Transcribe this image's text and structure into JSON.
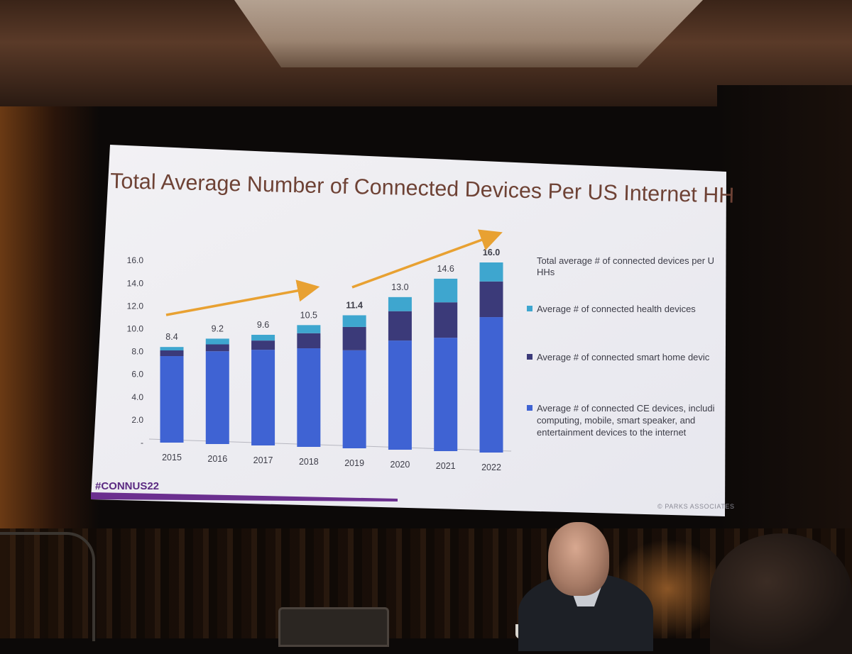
{
  "slide": {
    "title": "Total Average Number of Connected Devices Per US Internet HH",
    "hashtag": "#CONNUS22",
    "credit": "© PARKS ASSOCIATES"
  },
  "chart_data": {
    "type": "bar",
    "stacked": true,
    "title": "Total Average Number of Connected Devices Per US Internet HH",
    "categories": [
      "2015",
      "2016",
      "2017",
      "2018",
      "2019",
      "2020",
      "2021",
      "2022"
    ],
    "series": [
      {
        "name": "Average # of connected CE devices, including computing, mobile, smart speaker, and entertainment devices to the internet",
        "legend_lines": [
          "Average # of connected CE devices, includi",
          "computing, mobile, smart speaker, and",
          "entertainment devices to the internet"
        ],
        "color": "#3f63d3",
        "values": [
          7.6,
          8.1,
          8.3,
          8.5,
          8.4,
          9.3,
          9.6,
          11.4
        ]
      },
      {
        "name": "Average # of connected smart home devices",
        "legend_lines": [
          "Average # of connected smart home devic"
        ],
        "color": "#3b3a79",
        "values": [
          0.5,
          0.6,
          0.8,
          1.3,
          2.0,
          2.5,
          3.0,
          3.0
        ]
      },
      {
        "name": "Average # of connected health devices",
        "legend_lines": [
          "Average # of connected health devices"
        ],
        "color": "#3ea6cf",
        "values": [
          0.3,
          0.5,
          0.5,
          0.7,
          1.0,
          1.2,
          2.0,
          1.6
        ]
      }
    ],
    "totals": [
      "8.4",
      "9.2",
      "9.6",
      "10.5",
      "11.4",
      "13.0",
      "14.6",
      "16.0"
    ],
    "totals_bold": [
      false,
      false,
      false,
      false,
      true,
      false,
      false,
      true
    ],
    "y_ticks": [
      "-",
      "2.0",
      "4.0",
      "6.0",
      "8.0",
      "10.0",
      "12.0",
      "14.0",
      "16.0"
    ],
    "ylim": [
      0,
      16
    ],
    "legend_header": [
      "Total average # of connected devices per U",
      "HHs"
    ],
    "legend_position": "right",
    "trend_arrow_color": "#e8a132",
    "grid": false
  }
}
